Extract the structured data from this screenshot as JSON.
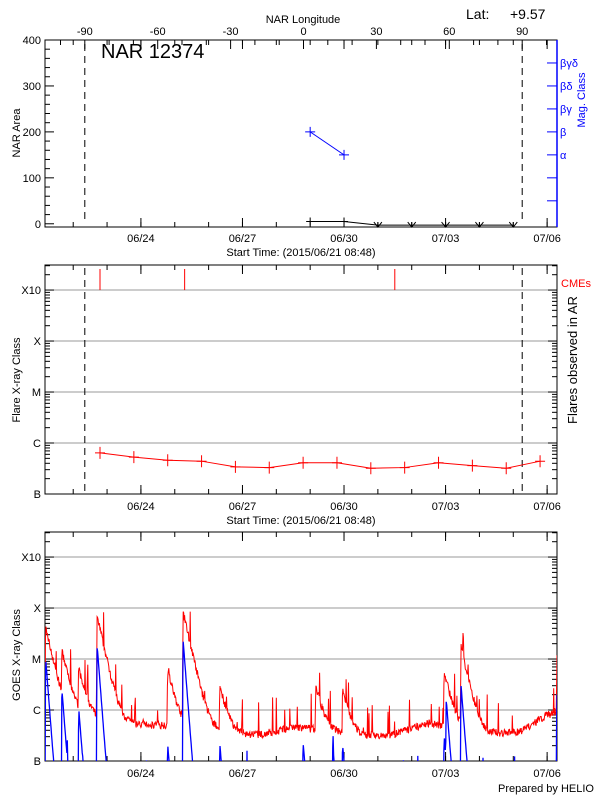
{
  "colors": {
    "axis": "#000000",
    "mag_class": "#0000ff",
    "flares": "#ff0000",
    "cmes": "#ff0000",
    "goes_long": "#ff0000",
    "goes_short": "#0000ff",
    "grid": "#999999"
  },
  "header": {
    "lat_label": "Lat:",
    "lat_value": "+9.57",
    "region_title": "NAR 12374"
  },
  "footer": {
    "credit": "Prepared by HELIO"
  },
  "chart_data": [
    {
      "type": "line",
      "title": "NAR 12374",
      "ylabel": "NAR Area",
      "ylim": [
        -7,
        400
      ],
      "yticks": [
        0,
        100,
        200,
        300,
        400
      ],
      "xlim": [
        "2015-06-21T04:00",
        "2015-07-06T07:00"
      ],
      "xticks": [
        {
          "date": "2015-06-24T00:00",
          "label": "06/24"
        },
        {
          "date": "2015-06-27T00:00",
          "label": "06/27"
        },
        {
          "date": "2015-06-30T00:00",
          "label": "06/30"
        },
        {
          "date": "2015-07-03T00:00",
          "label": "07/03"
        },
        {
          "date": "2015-07-06T00:00",
          "label": "07/06"
        }
      ],
      "xlabel": "Start Time: (2015/06/21 08:48)",
      "top_axis": {
        "label": "NAR Longitude",
        "range": [
          -90,
          90
        ],
        "ticks": [
          -90,
          -60,
          -30,
          0,
          30,
          60,
          90
        ],
        "dashed_lines_at": [
          -90,
          90
        ]
      },
      "right_axis": {
        "label": "Mag. Class",
        "ticks": [
          {
            "area": 50,
            "label": ""
          },
          {
            "area": 100,
            "label": ""
          },
          {
            "area": 150,
            "label": "α"
          },
          {
            "area": 200,
            "label": "β"
          },
          {
            "area": 250,
            "label": "βγ"
          },
          {
            "area": 300,
            "label": "βδ"
          },
          {
            "area": 350,
            "label": "βγδ"
          }
        ]
      },
      "series": [
        {
          "kind": "area",
          "points": [
            [
              "2015-06-29T00:00",
              5
            ],
            [
              "2015-06-30T00:00",
              5
            ],
            [
              "2015-07-01T00:00",
              -5
            ],
            [
              "2015-07-02T00:00",
              -5
            ],
            [
              "2015-07-03T00:00",
              -5
            ],
            [
              "2015-07-04T00:00",
              -5
            ],
            [
              "2015-07-05T00:00",
              -5
            ]
          ]
        },
        {
          "kind": "mag_class",
          "points": [
            [
              "2015-06-29T00:00",
              "β"
            ],
            [
              "2015-06-30T00:00",
              "α"
            ]
          ]
        }
      ]
    },
    {
      "type": "line",
      "ylabel": "Flare X-ray Class",
      "right_label": "Flares observed in AR",
      "yscale": "log",
      "ylim": [
        1e-07,
        0.0031
      ],
      "yticks": [
        {
          "value": 1e-07,
          "label": "B"
        },
        {
          "value": 1e-06,
          "label": "C"
        },
        {
          "value": 1e-05,
          "label": "M"
        },
        {
          "value": 0.0001,
          "label": "X"
        },
        {
          "value": 0.001,
          "label": "X10"
        }
      ],
      "grid": true,
      "xlim": [
        "2015-06-21T04:00",
        "2015-07-06T07:00"
      ],
      "xlabel": "Start Time: (2015/06/21 08:48)",
      "dashed_lines_at_longitude": [
        -90,
        90
      ],
      "flares": [
        [
          "2015-06-22T19:00",
          6.4e-07
        ],
        [
          "2015-06-23T19:00",
          5.3e-07
        ],
        [
          "2015-06-24T19:00",
          4.6e-07
        ],
        [
          "2015-06-25T19:00",
          4.4e-07
        ],
        [
          "2015-06-26T19:00",
          3.4e-07
        ],
        [
          "2015-06-27T19:00",
          3.3e-07
        ],
        [
          "2015-06-28T19:00",
          4.1e-07
        ],
        [
          "2015-06-29T19:00",
          4.1e-07
        ],
        [
          "2015-06-30T19:00",
          3.2e-07
        ],
        [
          "2015-07-01T19:00",
          3.3e-07
        ],
        [
          "2015-07-02T19:00",
          4.1e-07
        ],
        [
          "2015-07-03T19:00",
          3.6e-07
        ],
        [
          "2015-07-04T19:00",
          3.2e-07
        ],
        [
          "2015-07-05T19:00",
          4.4e-07
        ]
      ],
      "cmes": {
        "label": "CMEs",
        "times": [
          "2015-06-22T19:00",
          "2015-06-25T07:00",
          "2015-07-01T12:00"
        ]
      }
    },
    {
      "type": "line",
      "ylabel": "GOES X-ray Class",
      "yscale": "log",
      "ylim": [
        1e-07,
        0.0031
      ],
      "yticks": [
        {
          "value": 1e-07,
          "label": "B"
        },
        {
          "value": 1e-06,
          "label": "C"
        },
        {
          "value": 1e-05,
          "label": "M"
        },
        {
          "value": 0.0001,
          "label": "X"
        },
        {
          "value": 0.001,
          "label": "X10"
        }
      ],
      "grid": true,
      "xlim": [
        "2015-06-21T04:00",
        "2015-07-06T07:00"
      ],
      "series": [
        {
          "kind": "goes_long",
          "baseline": [
            [
              "2015-06-21T04:00",
              7e-07
            ],
            [
              "2015-06-22T00:00",
              8e-07
            ],
            [
              "2015-06-23T12:00",
              5e-07
            ],
            [
              "2015-06-25T00:00",
              5e-07
            ],
            [
              "2015-06-26T12:00",
              3.5e-07
            ],
            [
              "2015-06-27T12:00",
              3.2e-07
            ],
            [
              "2015-06-28T12:00",
              4.5e-07
            ],
            [
              "2015-06-29T12:00",
              4e-07
            ],
            [
              "2015-06-30T12:00",
              3e-07
            ],
            [
              "2015-07-01T12:00",
              3.3e-07
            ],
            [
              "2015-07-02T12:00",
              5.5e-07
            ],
            [
              "2015-07-03T06:00",
              4.5e-07
            ],
            [
              "2015-07-04T06:00",
              3.3e-07
            ],
            [
              "2015-07-05T06:00",
              3.8e-07
            ],
            [
              "2015-07-06T00:00",
              8e-07
            ],
            [
              "2015-07-06T07:00",
              8e-07
            ]
          ],
          "peaks": [
            [
              "2015-06-21T04:30",
              4e-05
            ],
            [
              "2015-06-21T16:00",
              1.2e-05
            ],
            [
              "2015-06-22T04:00",
              5e-06
            ],
            [
              "2015-06-22T17:00",
              6.6e-05
            ],
            [
              "2015-06-24T19:00",
              5.5e-06
            ],
            [
              "2015-06-25T06:00",
              8e-05
            ],
            [
              "2015-06-26T08:00",
              2.5e-06
            ],
            [
              "2015-06-29T04:00",
              2.5e-06
            ],
            [
              "2015-06-29T23:00",
              2e-06
            ],
            [
              "2015-07-02T23:00",
              5e-06
            ],
            [
              "2015-07-03T11:00",
              1.6e-05
            ],
            [
              "2015-07-06T07:00",
              1e-05
            ]
          ]
        },
        {
          "kind": "goes_short",
          "peaks": [
            [
              "2015-06-21T04:30",
              1e-05
            ],
            [
              "2015-06-21T16:00",
              2.5e-06
            ],
            [
              "2015-06-22T04:00",
              1e-06
            ],
            [
              "2015-06-22T17:00",
              1.8e-05
            ],
            [
              "2015-06-24T19:00",
              2e-07
            ],
            [
              "2015-06-25T06:00",
              2.2e-05
            ],
            [
              "2015-06-26T08:00",
              2e-07
            ],
            [
              "2015-06-28T19:00",
              2.2e-07
            ],
            [
              "2015-06-29T16:00",
              2e-07
            ],
            [
              "2015-06-29T23:00",
              2e-07
            ],
            [
              "2015-07-02T23:00",
              3e-07
            ],
            [
              "2015-07-03T00:30",
              1.5e-06
            ],
            [
              "2015-07-03T11:00",
              3e-06
            ],
            [
              "2015-07-06T07:00",
              2e-06
            ]
          ]
        }
      ],
      "xticks": [
        {
          "date": "2015-06-24T00:00",
          "label": "06/24"
        },
        {
          "date": "2015-06-27T00:00",
          "label": "06/27"
        },
        {
          "date": "2015-06-30T00:00",
          "label": "06/30"
        },
        {
          "date": "2015-07-03T00:00",
          "label": "07/03"
        },
        {
          "date": "2015-07-06T00:00",
          "label": "07/06"
        }
      ]
    }
  ]
}
